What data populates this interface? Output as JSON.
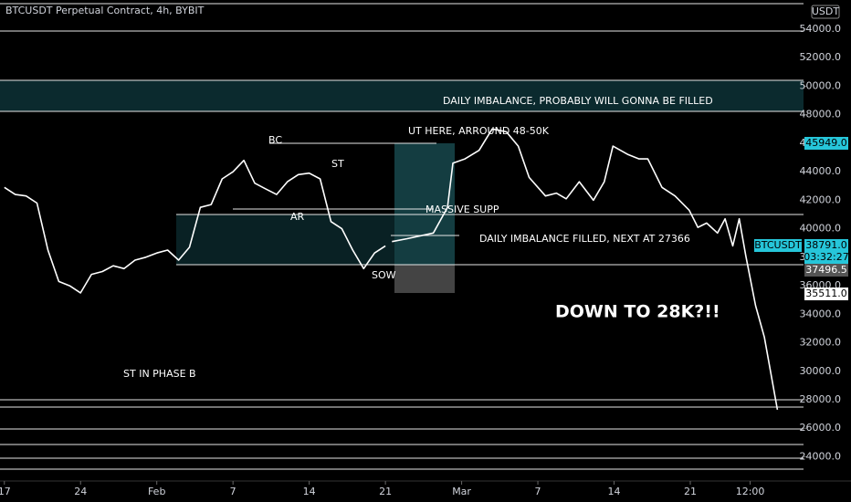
{
  "chart_data": {
    "type": "line",
    "title": "BTCUSDT Perpetual Contract, 4h, BYBIT",
    "currency": "USDT",
    "xlim": [
      -0.4,
      73.4
    ],
    "xticks": [
      {
        "value": 0,
        "label": "17"
      },
      {
        "value": 7,
        "label": "24"
      },
      {
        "value": 14,
        "label": "Feb"
      },
      {
        "value": 21,
        "label": "7"
      },
      {
        "value": 28,
        "label": "14"
      },
      {
        "value": 35,
        "label": "21"
      },
      {
        "value": 42,
        "label": "Mar"
      },
      {
        "value": 49,
        "label": "7"
      },
      {
        "value": 56,
        "label": "14"
      },
      {
        "value": 63,
        "label": "21"
      },
      {
        "value": 68.5,
        "label": "12:00"
      }
    ],
    "ylim": [
      22300,
      56050
    ],
    "yticks": [
      {
        "value": 24000,
        "label": "24000.0"
      },
      {
        "value": 26000,
        "label": "26000.0"
      },
      {
        "value": 28000,
        "label": "28000.0"
      },
      {
        "value": 30000,
        "label": "30000.0"
      },
      {
        "value": 32000,
        "label": "32000.0"
      },
      {
        "value": 34000,
        "label": "34000.0"
      },
      {
        "value": 36000,
        "label": "36000.0"
      },
      {
        "value": 38000,
        "label": "38000.0"
      },
      {
        "value": 40000,
        "label": "40000.0"
      },
      {
        "value": 42000,
        "label": "42000.0"
      },
      {
        "value": 44000,
        "label": "44000.0"
      },
      {
        "value": 46000,
        "label": "46000.0"
      },
      {
        "value": 48000,
        "label": "48000.0"
      },
      {
        "value": 50000,
        "label": "50000.0"
      },
      {
        "value": 52000,
        "label": "52000.0"
      },
      {
        "value": 54000,
        "label": "54000.0"
      }
    ],
    "series": [
      {
        "color": "#ffffff",
        "x": [
          0,
          1,
          2,
          3,
          4,
          5,
          6,
          7,
          8,
          9,
          10,
          11,
          12,
          13,
          14,
          15,
          16,
          17,
          18,
          19,
          20,
          21,
          22,
          23,
          24,
          25,
          26,
          27,
          28,
          29,
          30,
          31,
          32,
          33,
          34,
          35
        ],
        "values": [
          42900,
          42400,
          42300,
          41800,
          38500,
          36300,
          36000,
          35500,
          36800,
          37000,
          37400,
          37200,
          37800,
          38000,
          38300,
          38500,
          37800,
          38700,
          41500,
          41700,
          43500,
          44000,
          44800,
          43200,
          42800,
          42400,
          43300,
          43800,
          43900,
          43500,
          40500,
          40000,
          38500,
          37200,
          38300,
          38800
        ]
      },
      {
        "color": "#ffffff",
        "x": [
          35.6,
          37.0,
          39.4,
          40.7,
          41.2,
          42.3,
          43.6,
          44.8,
          46.1,
          47.2,
          48.2,
          49.7,
          50.7,
          51.6,
          52.8,
          54.1,
          55.1,
          55.9,
          57.3,
          58.3,
          59.1,
          60.4,
          61.6,
          62.9,
          63.7,
          64.5,
          65.5,
          66.2,
          66.9,
          67.5,
          68.1,
          69.0,
          69.8,
          71.0
        ],
        "values": [
          39100,
          39300,
          39700,
          41500,
          44600,
          44900,
          45500,
          47000,
          46800,
          45800,
          43600,
          42300,
          42500,
          42100,
          43300,
          42000,
          43300,
          45800,
          45200,
          44900,
          44900,
          42900,
          42300,
          41300,
          40100,
          40400,
          39700,
          40700,
          38800,
          40700,
          38100,
          34600,
          32400,
          27300
        ]
      }
    ],
    "annotations": [
      "DAILY IMBALANCE, PROBABLY WILL GONNA BE FILLED",
      "UT HERE, ARROUND 48-50K",
      "BC",
      "ST",
      "AR",
      "MASSIVE SUPP",
      "DAILY IMBALANCE FILLED, NEXT AT 27366",
      "SOW",
      "DOWN TO 28K?!!",
      "ST IN PHASE B"
    ],
    "price_tags": [
      "45949.0",
      "BTCUSDT",
      "38791.0",
      "03:32:27",
      "37496.5",
      "35511.0"
    ]
  }
}
